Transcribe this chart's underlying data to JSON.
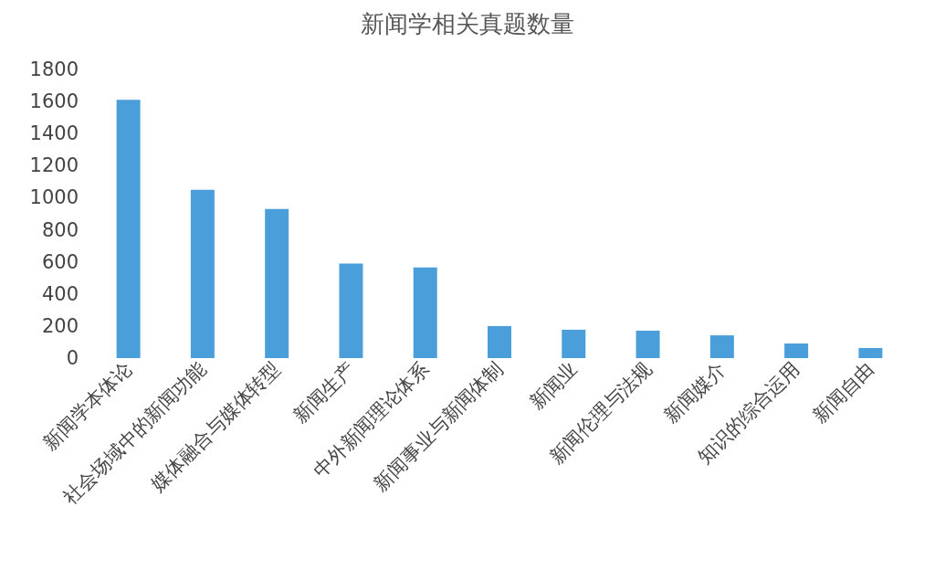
{
  "chart_data": {
    "type": "bar",
    "title": "新闻学相关真题数量",
    "categories": [
      "新闻学本体论",
      "社会场域中的新闻功能",
      "媒体融合与媒体转型",
      "新闻生产",
      "中外新闻理论体系",
      "新闻事业与新闻体制",
      "新闻业",
      "新闻伦理与法规",
      "新闻媒介",
      "知识的综合运用",
      "新闻自由"
    ],
    "values": [
      1610,
      1050,
      930,
      590,
      565,
      200,
      177,
      171,
      142,
      91,
      63
    ],
    "color": "#4a9fdb",
    "ylim": [
      0,
      1800
    ],
    "yticks": [
      0,
      200,
      400,
      600,
      800,
      1000,
      1200,
      1400,
      1600,
      1800
    ],
    "grid": false
  }
}
